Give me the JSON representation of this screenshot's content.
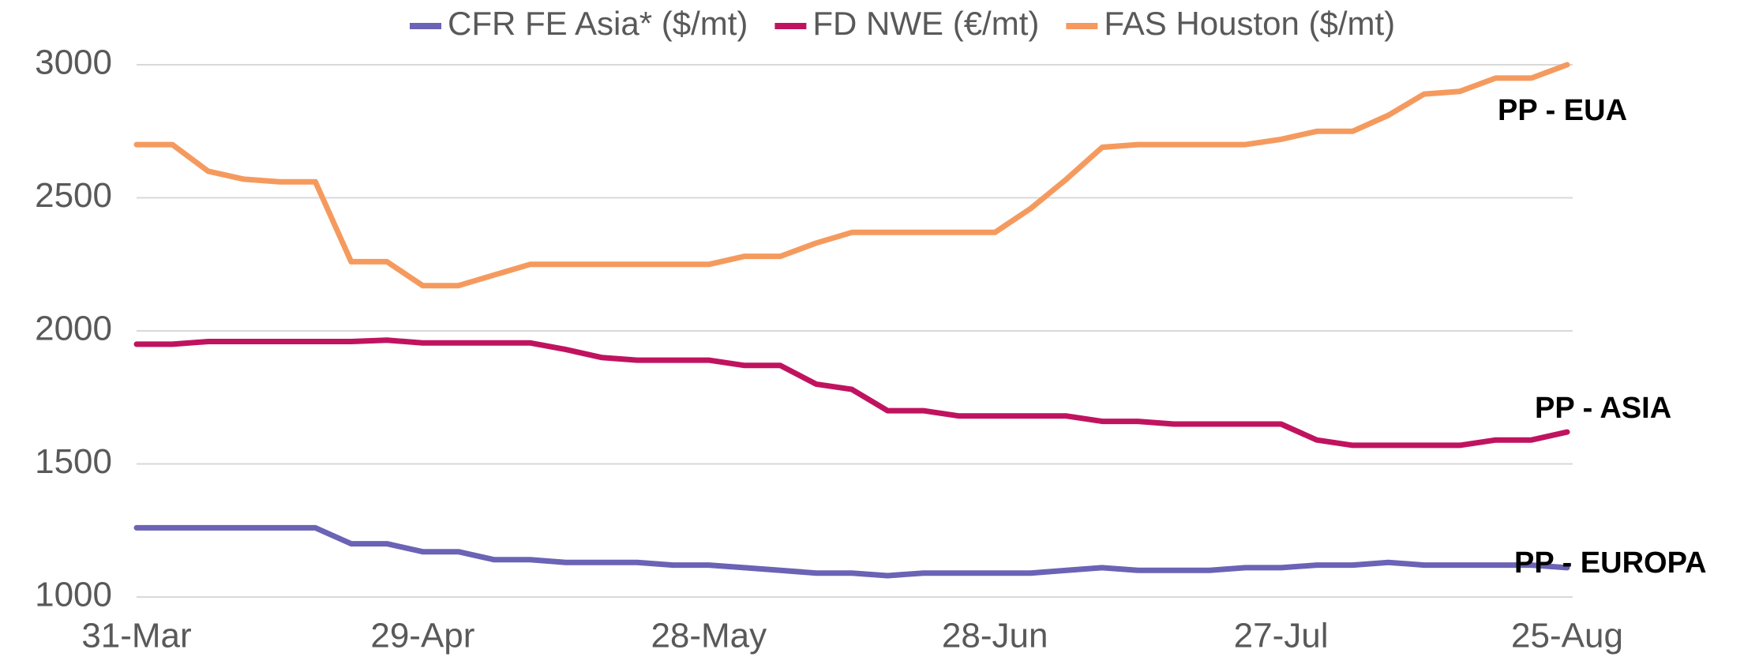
{
  "chart_data": {
    "type": "line",
    "categories": [
      "31-Mar",
      null,
      null,
      null,
      null,
      null,
      null,
      null,
      "29-Apr",
      null,
      null,
      null,
      null,
      null,
      null,
      null,
      "28-May",
      null,
      null,
      null,
      null,
      null,
      null,
      null,
      "28-Jun",
      null,
      null,
      null,
      null,
      null,
      null,
      null,
      "27-Jul",
      null,
      null,
      null,
      null,
      null,
      null,
      null,
      "25-Aug"
    ],
    "series": [
      {
        "name": "CFR FE Asia* ($/mt)",
        "color": "#6b63b5",
        "values": [
          1260,
          1260,
          1260,
          1260,
          1260,
          1260,
          1200,
          1200,
          1170,
          1170,
          1140,
          1140,
          1130,
          1130,
          1130,
          1120,
          1120,
          1110,
          1100,
          1090,
          1090,
          1080,
          1090,
          1090,
          1090,
          1090,
          1100,
          1110,
          1100,
          1100,
          1100,
          1110,
          1110,
          1120,
          1120,
          1130,
          1120,
          1120,
          1120,
          1120,
          1110
        ]
      },
      {
        "name": "FD NWE (€/mt)",
        "color": "#c0135f",
        "values": [
          1950,
          1950,
          1960,
          1960,
          1960,
          1960,
          1960,
          1965,
          1955,
          1955,
          1955,
          1955,
          1930,
          1900,
          1890,
          1890,
          1890,
          1870,
          1870,
          1800,
          1780,
          1700,
          1700,
          1680,
          1680,
          1680,
          1680,
          1660,
          1660,
          1650,
          1650,
          1650,
          1650,
          1590,
          1570,
          1570,
          1570,
          1570,
          1590,
          1590,
          1620
        ]
      },
      {
        "name": "FAS Houston ($/mt)",
        "color": "#f59a5e",
        "values": [
          2700,
          2700,
          2600,
          2570,
          2560,
          2560,
          2260,
          2260,
          2170,
          2170,
          2210,
          2250,
          2250,
          2250,
          2250,
          2250,
          2250,
          2280,
          2280,
          2330,
          2370,
          2370,
          2370,
          2370,
          2370,
          2460,
          2570,
          2690,
          2700,
          2700,
          2700,
          2700,
          2720,
          2750,
          2750,
          2810,
          2890,
          2900,
          2950,
          2950,
          3000
        ]
      }
    ],
    "ylim": [
      1000,
      3000
    ],
    "yticks": [
      1000,
      1500,
      2000,
      2500,
      3000
    ],
    "grid": true,
    "legend": "top",
    "annotations": [
      "PP - EUA",
      "PP - ASIA",
      "PP - EUROPA"
    ]
  }
}
